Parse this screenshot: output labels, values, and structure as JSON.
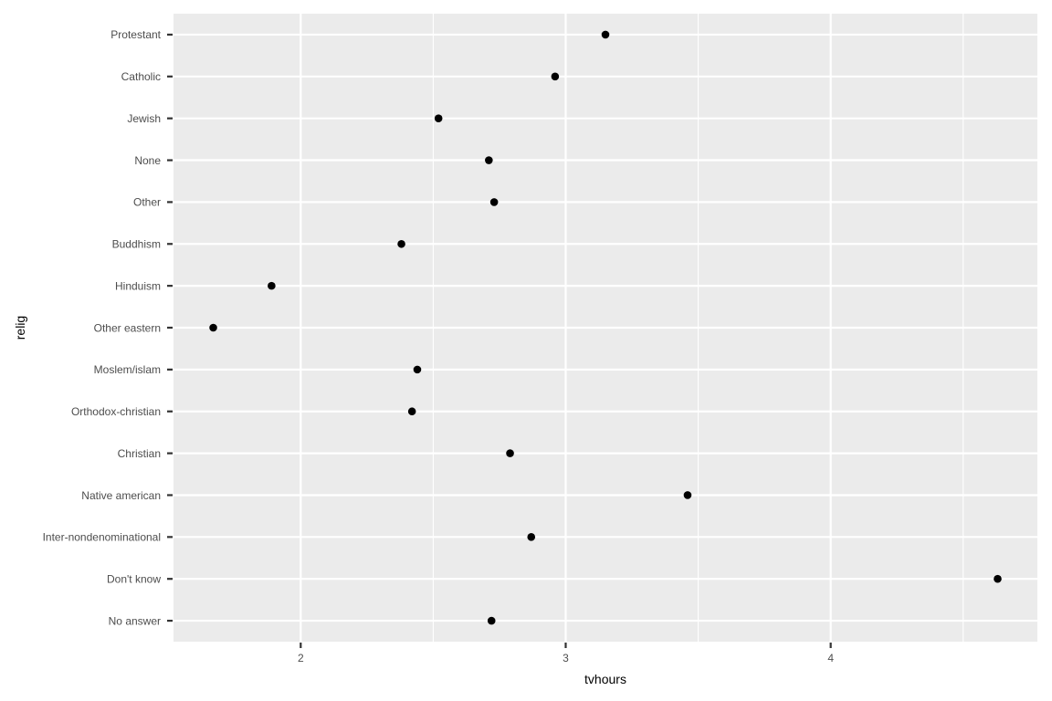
{
  "chart_data": {
    "type": "scatter",
    "xlabel": "tvhours",
    "ylabel": "relig",
    "xlim": [
      1.52,
      4.78
    ],
    "x_ticks": [
      2,
      3,
      4
    ],
    "x_tick_labels": [
      "2",
      "3",
      "4"
    ],
    "grid": true,
    "legend": "none",
    "categories": [
      "Protestant",
      "Catholic",
      "Jewish",
      "None",
      "Other",
      "Buddhism",
      "Hinduism",
      "Other eastern",
      "Moslem/islam",
      "Orthodox-christian",
      "Christian",
      "Native american",
      "Inter-nondenominational",
      "Don't know",
      "No answer"
    ],
    "values": [
      3.15,
      2.96,
      2.52,
      2.71,
      2.73,
      2.38,
      1.89,
      1.67,
      2.44,
      2.42,
      2.79,
      3.46,
      2.87,
      4.63,
      2.72
    ]
  },
  "colors": {
    "panel_background": "#ebebeb",
    "grid_line": "#ffffff",
    "point": "#000000",
    "tick_text": "#4d4d4d",
    "tick_mark": "#333333",
    "axis_title": "#000000"
  }
}
